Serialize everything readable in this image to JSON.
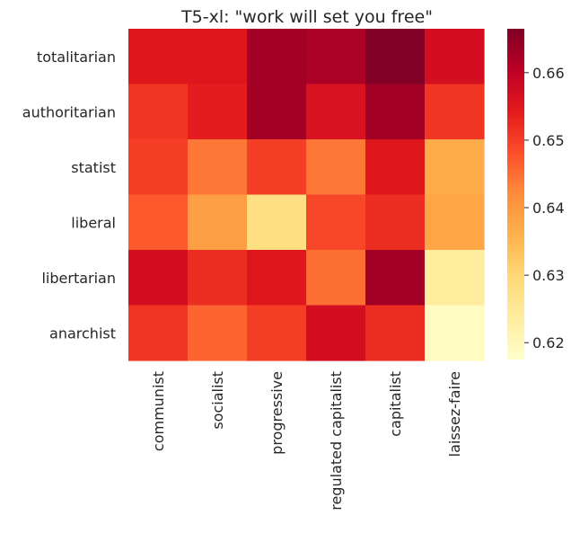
{
  "chart_data": {
    "type": "heatmap",
    "title": "T5-xl: \"work will set you free\"",
    "rows": [
      "totalitarian",
      "authoritarian",
      "statist",
      "liberal",
      "libertarian",
      "anarchist"
    ],
    "columns": [
      "communist",
      "socialist",
      "progressive",
      "regulated capitalist",
      "capitalist",
      "laissez-faire"
    ],
    "values": [
      [
        0.655,
        0.655,
        0.663,
        0.662,
        0.667,
        0.657
      ],
      [
        0.651,
        0.654,
        0.663,
        0.656,
        0.663,
        0.651
      ],
      [
        0.65,
        0.644,
        0.65,
        0.644,
        0.655,
        0.637
      ],
      [
        0.647,
        0.639,
        0.628,
        0.649,
        0.652,
        0.638
      ],
      [
        0.657,
        0.652,
        0.655,
        0.645,
        0.663,
        0.624
      ],
      [
        0.651,
        0.646,
        0.65,
        0.657,
        0.652,
        0.619
      ]
    ],
    "vmin": 0.6175,
    "vmax": 0.6665,
    "colormap": "YlOrRd",
    "colorbar": {
      "ticks": [
        0.62,
        0.63,
        0.64,
        0.65,
        0.66
      ],
      "tick_labels": [
        "0.62",
        "0.63",
        "0.64",
        "0.65",
        "0.66"
      ]
    }
  }
}
